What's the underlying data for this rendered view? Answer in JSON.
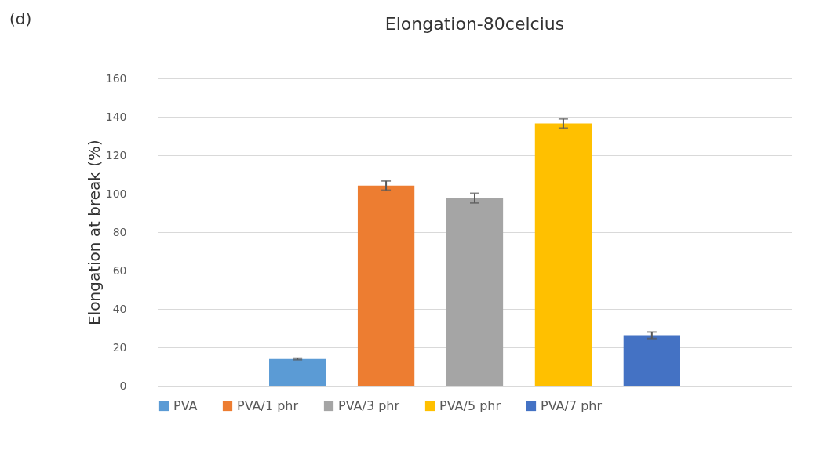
{
  "chart_data": {
    "type": "bar",
    "title": "Elongation-80celcius",
    "ylabel": "Elongation at break (%)",
    "annotations": [
      "(d)"
    ],
    "categories": [
      null
    ],
    "series": [
      {
        "name": "PVA",
        "color": "#5b9bd5",
        "values": [
          14.0
        ],
        "errors": [
          0.4
        ]
      },
      {
        "name": "PVA/1 phr",
        "color": "#ed7d31",
        "values": [
          104.2
        ],
        "errors": [
          2.4
        ]
      },
      {
        "name": "PVA/3 phr",
        "color": "#a5a5a5",
        "values": [
          97.7
        ],
        "errors": [
          2.5
        ]
      },
      {
        "name": "PVA/5 phr",
        "color": "#ffc000",
        "values": [
          136.5
        ],
        "errors": [
          2.4
        ]
      },
      {
        "name": "PVA/7 phr",
        "color": "#4472c4",
        "values": [
          26.3
        ],
        "errors": [
          1.7
        ]
      }
    ],
    "ylim": [
      0,
      160
    ],
    "yticks": [
      0,
      20,
      40,
      60,
      80,
      100,
      120,
      140,
      160
    ],
    "grid": "y",
    "legend": "bottom"
  }
}
